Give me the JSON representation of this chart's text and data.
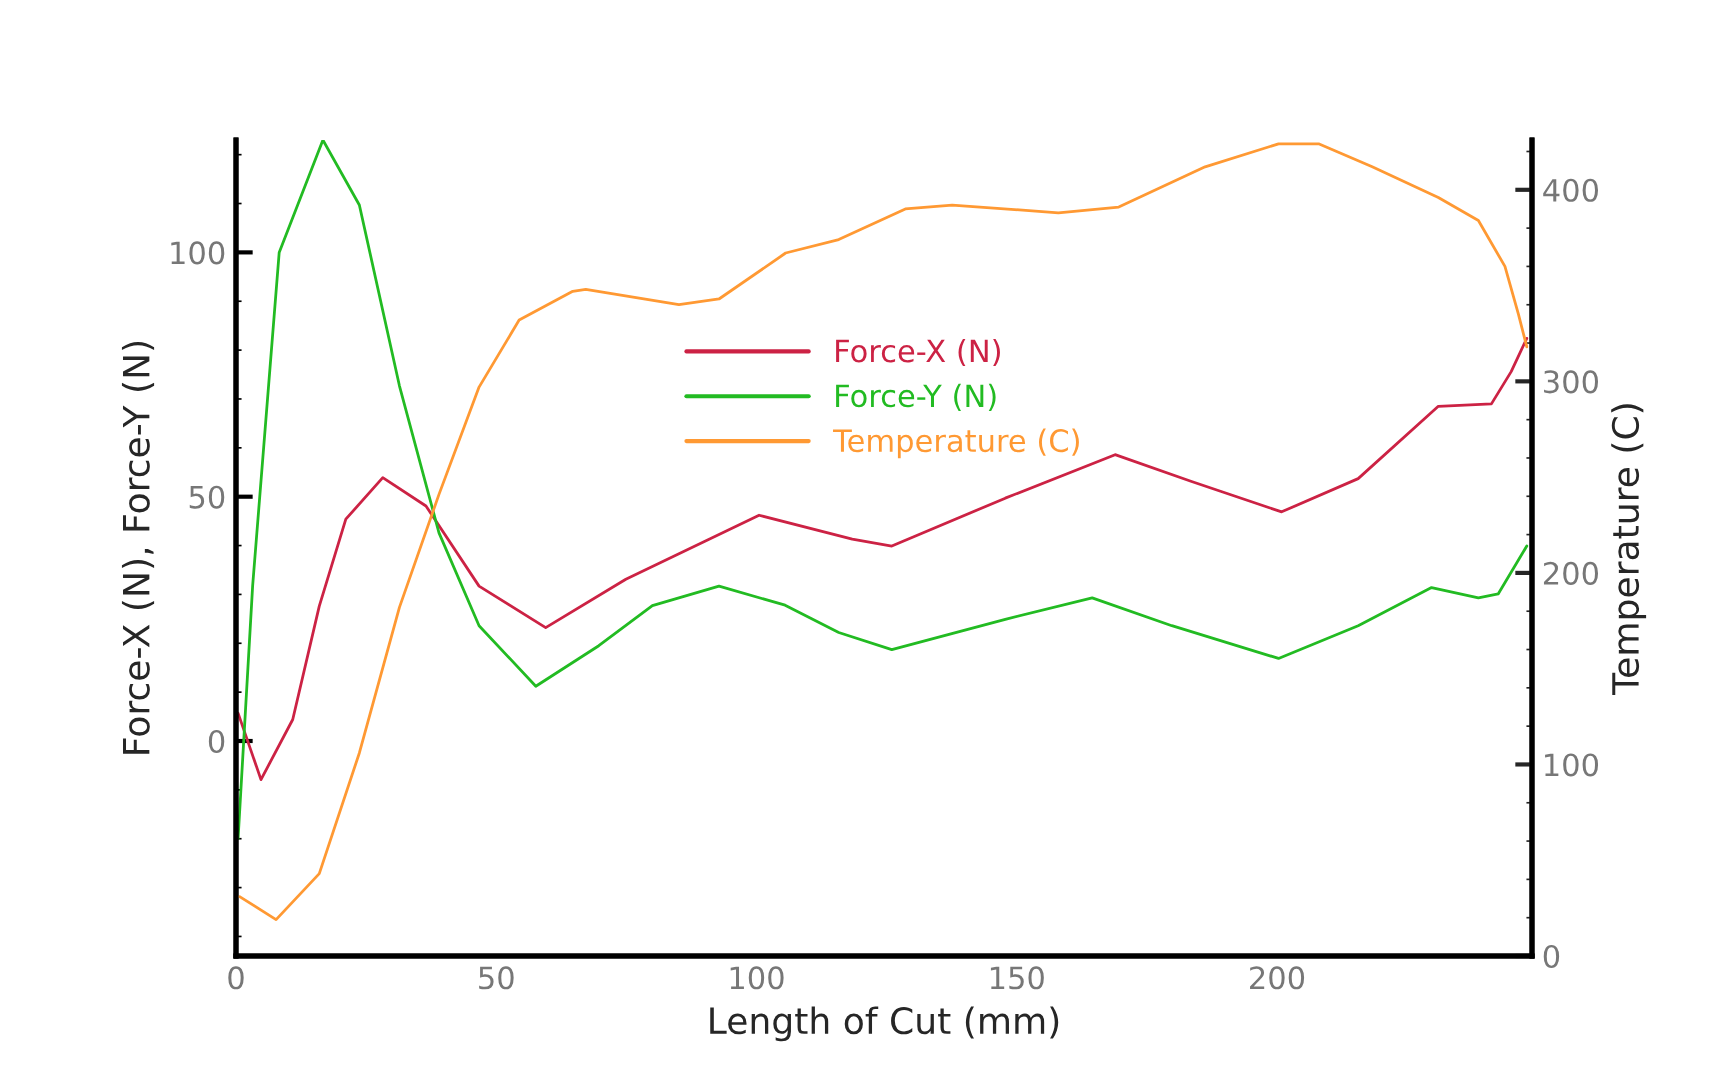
{
  "chart_data": {
    "type": "line",
    "xlabel": "Length of Cut (mm)",
    "ylabel": "Force-X (N), Force-Y (N)",
    "y2label": "Temperature (C)",
    "xlim": [
      0,
      249
    ],
    "xticks": [
      0,
      50,
      100,
      150,
      200
    ],
    "ylim": [
      -44,
      123
    ],
    "yticks": [
      0,
      50,
      100
    ],
    "y2lim": [
      0,
      426
    ],
    "y2ticks": [
      0,
      100,
      200,
      300,
      400
    ],
    "grid": false,
    "legend": "top",
    "marker": "none",
    "line_style": "solid",
    "series": [
      {
        "name": "Force-X (N)",
        "color": "#cc2244",
        "x": [
          0.4,
          4.8,
          10.9,
          16,
          21.1,
          28.2,
          36.5,
          46.7,
          59.5,
          74.9,
          100.5,
          118.4,
          126,
          147.8,
          168.9,
          183.6,
          200.9,
          215.6,
          231,
          241.2,
          245,
          248
        ],
        "values": [
          5.7,
          -7.9,
          4.4,
          27.6,
          45.4,
          53.9,
          48.1,
          31.7,
          23.2,
          33.1,
          46.2,
          41.3,
          39.9,
          49.7,
          58.6,
          53.1,
          46.9,
          53.7,
          68.5,
          69,
          75.6,
          82.4
        ]
      },
      {
        "name": "Force-Y (N)",
        "color": "#22bb22",
        "x": [
          0.4,
          3.2,
          8.3,
          16.7,
          23.7,
          31.4,
          39,
          46.7,
          57.6,
          69.7,
          80,
          92.8,
          105.5,
          115.8,
          126,
          147.8,
          164.5,
          179.8,
          200.3,
          215.6,
          229.7,
          238.7,
          242.5,
          248
        ],
        "values": [
          -20,
          31.8,
          100,
          123,
          109.7,
          72.7,
          42.6,
          23.6,
          11.2,
          19.5,
          27.7,
          31.7,
          27.8,
          22.2,
          18.7,
          24.9,
          29.3,
          23.6,
          16.9,
          23.6,
          31.4,
          29.3,
          30.1,
          39.9
        ]
      },
      {
        "name": "Temperature (C)",
        "color": "#ff9933",
        "axis": "y2",
        "x": [
          0.7,
          7.7,
          16,
          23.7,
          31.4,
          39,
          46.7,
          54.4,
          64.7,
          67.2,
          85.1,
          92.8,
          105.6,
          115.8,
          128.6,
          137.6,
          158,
          169.6,
          186.2,
          200.3,
          208,
          218.3,
          231,
          238.7,
          243.8,
          246.4,
          248
        ],
        "values": [
          31,
          19,
          43,
          106,
          182,
          241,
          297,
          332,
          347,
          348,
          340,
          343,
          367,
          374,
          390,
          392,
          388,
          391,
          412,
          424,
          424,
          412,
          396,
          384,
          360,
          335,
          318
        ]
      }
    ]
  }
}
